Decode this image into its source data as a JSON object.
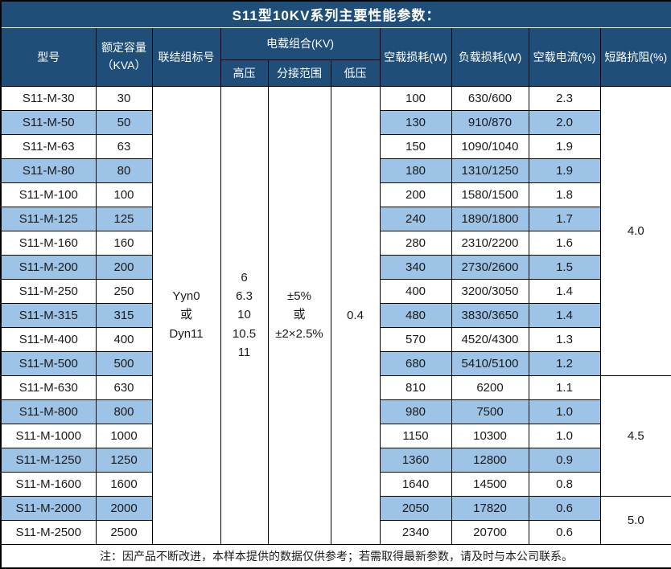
{
  "title": "S11型10KV系列主要性能参数：",
  "colors": {
    "header_bg": "#1F4E79",
    "row_alt_bg": "#9DC3E6",
    "border": "#000000"
  },
  "table": {
    "headers": {
      "model": "型号",
      "capacity": "额定容量\n（KVA）",
      "connection": "联结组标号",
      "voltage_group": "电载组合(KV)",
      "high_voltage": "高压",
      "tap_range": "分接范围",
      "low_voltage": "低压",
      "no_load_loss": "空载损耗(W)",
      "load_loss": "负载损耗(W)",
      "no_load_current": "空载电流(%)",
      "impedance": "短路抗阻(%)"
    },
    "merged": {
      "connection": "Yyn0\n或\nDyn11",
      "high_voltage": "6\n6.3\n10\n10.5\n11",
      "tap_range": "±5%\n或\n±2×2.5%",
      "low_voltage": "0.4"
    },
    "impedance_groups": [
      {
        "value": "4.0",
        "rows": 12
      },
      {
        "value": "4.5",
        "rows": 5
      },
      {
        "value": "5.0",
        "rows": 2
      }
    ],
    "rows": [
      {
        "model": "S11-M-30",
        "capacity": "30",
        "no_load_loss": "100",
        "load_loss": "630/600",
        "no_load_current": "2.3"
      },
      {
        "model": "S11-M-50",
        "capacity": "50",
        "no_load_loss": "130",
        "load_loss": "910/870",
        "no_load_current": "2.0"
      },
      {
        "model": "S11-M-63",
        "capacity": "63",
        "no_load_loss": "150",
        "load_loss": "1090/1040",
        "no_load_current": "1.9"
      },
      {
        "model": "S11-M-80",
        "capacity": "80",
        "no_load_loss": "180",
        "load_loss": "1310/1250",
        "no_load_current": "1.9"
      },
      {
        "model": "S11-M-100",
        "capacity": "100",
        "no_load_loss": "200",
        "load_loss": "1580/1500",
        "no_load_current": "1.8"
      },
      {
        "model": "S11-M-125",
        "capacity": "125",
        "no_load_loss": "240",
        "load_loss": "1890/1800",
        "no_load_current": "1.7"
      },
      {
        "model": "S11-M-160",
        "capacity": "160",
        "no_load_loss": "280",
        "load_loss": "2310/2200",
        "no_load_current": "1.6"
      },
      {
        "model": "S11-M-200",
        "capacity": "200",
        "no_load_loss": "340",
        "load_loss": "2730/2600",
        "no_load_current": "1.5"
      },
      {
        "model": "S11-M-250",
        "capacity": "250",
        "no_load_loss": "400",
        "load_loss": "3200/3050",
        "no_load_current": "1.4"
      },
      {
        "model": "S11-M-315",
        "capacity": "315",
        "no_load_loss": "480",
        "load_loss": "3830/3650",
        "no_load_current": "1.4"
      },
      {
        "model": "S11-M-400",
        "capacity": "400",
        "no_load_loss": "570",
        "load_loss": "4520/4300",
        "no_load_current": "1.3"
      },
      {
        "model": "S11-M-500",
        "capacity": "500",
        "no_load_loss": "680",
        "load_loss": "5410/5100",
        "no_load_current": "1.2"
      },
      {
        "model": "S11-M-630",
        "capacity": "630",
        "no_load_loss": "810",
        "load_loss": "6200",
        "no_load_current": "1.1"
      },
      {
        "model": "S11-M-800",
        "capacity": "800",
        "no_load_loss": "980",
        "load_loss": "7500",
        "no_load_current": "1.0"
      },
      {
        "model": "S11-M-1000",
        "capacity": "1000",
        "no_load_loss": "1150",
        "load_loss": "10300",
        "no_load_current": "1.0"
      },
      {
        "model": "S11-M-1250",
        "capacity": "1250",
        "no_load_loss": "1360",
        "load_loss": "12800",
        "no_load_current": "0.9"
      },
      {
        "model": "S11-M-1600",
        "capacity": "1600",
        "no_load_loss": "1640",
        "load_loss": "14500",
        "no_load_current": "0.8"
      },
      {
        "model": "S11-M-2000",
        "capacity": "2000",
        "no_load_loss": "2050",
        "load_loss": "17820",
        "no_load_current": "0.6"
      },
      {
        "model": "S11-M-2500",
        "capacity": "2500",
        "no_load_loss": "2340",
        "load_loss": "20700",
        "no_load_current": "0.6"
      }
    ]
  },
  "footer_note": "注：因产品不断改进，本样本提供的数据仅供参考；若需取得最新参数，请及时与本公司联系。"
}
